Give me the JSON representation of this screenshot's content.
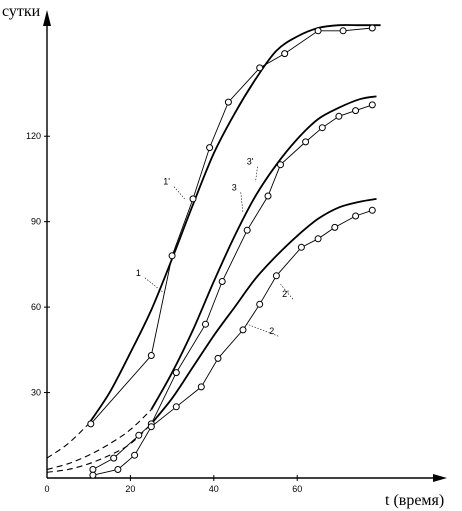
{
  "chart_data": {
    "type": "line",
    "ylabel": "сутки",
    "xlabel": "t (время)",
    "xlim": [
      0,
      88
    ],
    "ylim": [
      0,
      158
    ],
    "x_ticks": [
      0,
      20,
      40,
      60
    ],
    "y_ticks": [
      30,
      60,
      90,
      120
    ],
    "series": [
      {
        "name": "1",
        "style": "observed",
        "x": [
          10.5,
          25,
          30,
          35,
          39,
          43.5,
          51,
          57,
          65,
          71,
          78
        ],
        "y": [
          19,
          43,
          78,
          98,
          116,
          132,
          144,
          149,
          157,
          157,
          158
        ]
      },
      {
        "name": "1'",
        "style": "smooth",
        "x": [
          10,
          15,
          20,
          25,
          30,
          35,
          40,
          45,
          50,
          55,
          60,
          65,
          70,
          75,
          80
        ],
        "y": [
          19,
          30,
          44,
          59,
          77,
          96,
          114,
          128,
          140,
          150,
          155,
          158,
          159,
          159,
          159
        ]
      },
      {
        "name": "3",
        "style": "observed",
        "x": [
          11,
          16,
          22,
          25,
          31,
          38,
          42,
          48,
          53,
          56,
          62,
          66,
          70,
          74,
          78
        ],
        "y": [
          3,
          7,
          15,
          19,
          37,
          54,
          69,
          87,
          99,
          110,
          118,
          123,
          127,
          129,
          131
        ]
      },
      {
        "name": "3'",
        "style": "smooth",
        "x": [
          25,
          30,
          35,
          40,
          45,
          50,
          55,
          60,
          65,
          70,
          75,
          79
        ],
        "y": [
          24,
          37,
          52,
          69,
          85,
          99,
          110,
          119,
          126,
          130,
          133,
          134
        ]
      },
      {
        "name": "2",
        "style": "observed",
        "x": [
          11,
          17,
          21,
          25,
          31,
          37,
          41,
          47,
          51,
          55,
          61,
          65,
          69,
          74,
          78
        ],
        "y": [
          1,
          3,
          8,
          18,
          25,
          32,
          42,
          52,
          61,
          71,
          81,
          84,
          88,
          92,
          94
        ]
      },
      {
        "name": "2'",
        "style": "smooth",
        "x": [
          25,
          30,
          35,
          40,
          45,
          50,
          55,
          60,
          65,
          70,
          75,
          79
        ],
        "y": [
          19,
          28,
          39,
          50,
          60,
          70,
          78,
          85,
          91,
          95,
          97,
          98
        ]
      },
      {
        "name": "1-ext",
        "style": "dashed",
        "x": [
          0,
          5,
          10
        ],
        "y": [
          7,
          12,
          19
        ]
      },
      {
        "name": "3-ext",
        "style": "dashed",
        "x": [
          0,
          5,
          10,
          15,
          20,
          25
        ],
        "y": [
          3,
          5,
          8,
          12,
          17,
          24
        ]
      },
      {
        "name": "2-ext",
        "style": "dashed",
        "x": [
          0,
          5,
          10,
          15,
          20,
          25
        ],
        "y": [
          2,
          3,
          5,
          8,
          12,
          19
        ]
      }
    ],
    "labels": [
      {
        "text": "1",
        "x": 22.5,
        "y": 71,
        "target_x": 28,
        "target_y": 65
      },
      {
        "text": "1'",
        "x": 29.5,
        "y": 103,
        "target_x": 33,
        "target_y": 98
      },
      {
        "text": "3'",
        "x": 49.5,
        "y": 110,
        "target_x": 50,
        "target_y": 104
      },
      {
        "text": "3",
        "x": 45.5,
        "y": 101,
        "target_x": 47,
        "target_y": 93
      },
      {
        "text": "2'",
        "x": 58,
        "y": 63.5,
        "target_x": 56,
        "target_y": 68
      },
      {
        "text": "2",
        "x": 54.5,
        "y": 50.5,
        "target_x": 48,
        "target_y": 54
      }
    ]
  }
}
